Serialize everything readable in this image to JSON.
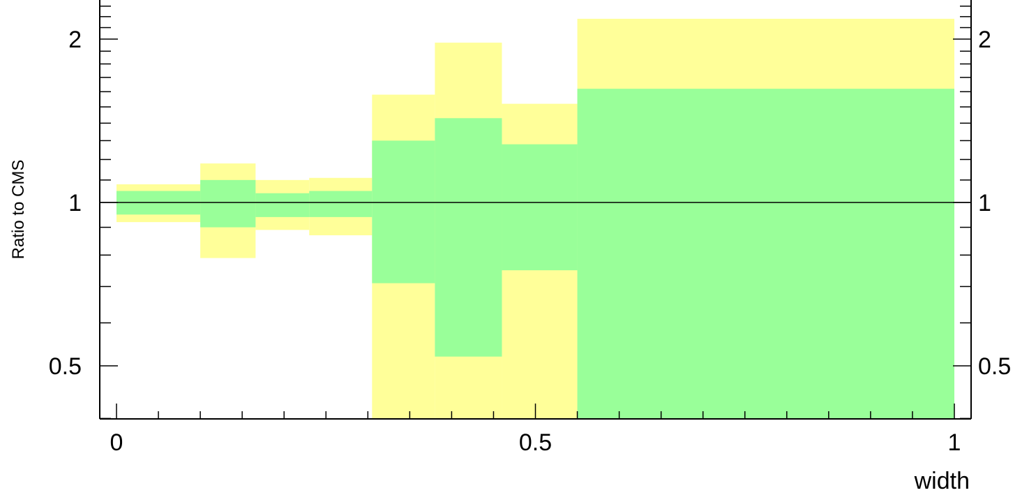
{
  "chart_data": {
    "type": "area",
    "title": "",
    "xlabel": "width",
    "ylabel": "Ratio to CMS",
    "xlim": [
      0,
      1
    ],
    "ylim": [
      0.35,
      2.45
    ],
    "y_scale": "log",
    "grid": false,
    "legend": "none",
    "x_ticks": [
      {
        "value": 0,
        "label": "0"
      },
      {
        "value": 0.5,
        "label": "0.5"
      },
      {
        "value": 1,
        "label": "1"
      }
    ],
    "y_ticks": [
      {
        "value": 0.5,
        "label": "0.5"
      },
      {
        "value": 1,
        "label": "1"
      },
      {
        "value": 2,
        "label": "2"
      }
    ],
    "reference_line": 1,
    "bins": [
      0,
      0.1,
      0.166,
      0.23,
      0.305,
      0.38,
      0.46,
      0.55,
      1.0
    ],
    "series": [
      {
        "color": "#ffff99",
        "low": [
          0.92,
          0.79,
          0.89,
          0.87,
          0.35,
          0.35,
          0.36,
          0.35
        ],
        "high": [
          1.08,
          1.18,
          1.1,
          1.11,
          1.58,
          1.97,
          1.52,
          2.18
        ]
      },
      {
        "color": "#99ff99",
        "low": [
          0.95,
          0.9,
          0.94,
          0.94,
          0.71,
          0.52,
          0.75,
          0.35
        ],
        "high": [
          1.05,
          1.1,
          1.04,
          1.05,
          1.3,
          1.43,
          1.28,
          1.62
        ]
      }
    ]
  }
}
